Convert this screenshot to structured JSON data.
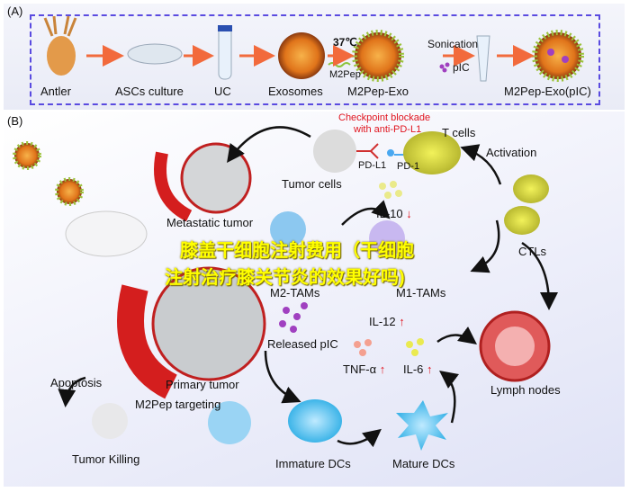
{
  "panel_a": {
    "label": "(A)",
    "steps": [
      "Antler",
      "ASCs culture",
      "UC",
      "Exosomes",
      "M2Pep-Exo",
      "M2Pep-Exo(pIC)"
    ],
    "temp": "37℃",
    "peptide": "M2Pep",
    "sonication": "Sonication",
    "pic": "pIC"
  },
  "panel_b": {
    "label": "(B)",
    "checkpoint_line1": "Checkpoint blockade",
    "checkpoint_line2": "with anti-PD-L1",
    "t_cells": "T cells",
    "pd_l1": "PD-L1",
    "pd_1": "PD-1",
    "tumor_cells": "Tumor cells",
    "activation": "Activation",
    "metastatic_tumor": "Metastatic tumor",
    "il10": "IL-10",
    "m2_tams": "M2-TAMs",
    "m1_tams": "M1-TAMs",
    "ctls": "CTLs",
    "il12": "IL-12",
    "released_pic": "Released pIC",
    "tnf": "TNF-α",
    "il6": "IL-6",
    "lymph_nodes": "Lymph nodes",
    "apoptosis": "Apoptosis",
    "primary_tumor": "Primary tumor",
    "m2pep_targeting": "M2Pep targeting",
    "tumor_killing": "Tumor Killing",
    "immature_dcs": "Immature DCs",
    "mature_dcs": "Mature DCs",
    "arrow_up": "↑",
    "arrow_down": "↓"
  },
  "overlay": {
    "line1": "膝盖干细胞注射费用（干细胞",
    "line2": "注射治疗膝关节炎的效果好吗)"
  },
  "colors": {
    "dashed_border": "#5a4be0",
    "checkpoint_text": "#e0141e",
    "overlay_text": "#ffff00",
    "exosome": "#e07a10",
    "dc": "#5cc6ec",
    "t_cell": "#d8d848"
  }
}
